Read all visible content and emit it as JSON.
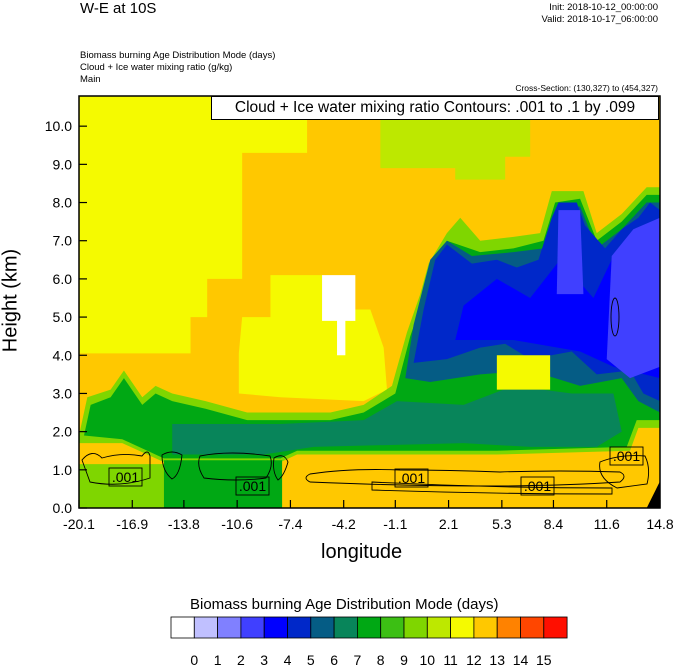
{
  "header": {
    "title": "W-E at 10S",
    "init": "Init: 2018-10-12_00:00:00",
    "valid": "Valid: 2018-10-17_06:00:00",
    "field1": "Biomass burning Age Distribution Mode   (days)",
    "field2": "Cloud + Ice water mixing ratio   (g/kg)",
    "field3": "Main",
    "cross_section": "Cross-Section: (130,327) to (454,327)"
  },
  "chart_data": {
    "type": "heatmap",
    "title": "W-E at 10S",
    "xlabel": "longitude",
    "ylabel": "Height (km)",
    "xlim": [
      -20.1,
      14.8
    ],
    "ylim": [
      0,
      10.79
    ],
    "xticks": [
      "-20.1",
      "-16.9",
      "-13.8",
      "-10.6",
      "-7.4",
      "-4.2",
      "-1.1",
      "2.1",
      "5.3",
      "8.4",
      "11.6",
      "14.8"
    ],
    "xtick_values": [
      -20.1,
      -16.9,
      -13.8,
      -10.6,
      -7.4,
      -4.2,
      -1.1,
      2.1,
      5.3,
      8.4,
      11.6,
      14.8
    ],
    "yticks": [
      "0.0",
      "1.0",
      "2.0",
      "3.0",
      "4.0",
      "5.0",
      "6.0",
      "7.0",
      "8.0",
      "9.0",
      "10.0"
    ],
    "ytick_values": [
      0,
      1,
      2,
      3,
      4,
      5,
      6,
      7,
      8,
      9,
      10
    ],
    "contour_info": "Cloud + Ice water mixing ratio Contours: .001 to .1 by .099",
    "contour_labels": [
      ".001",
      ".001",
      ".001",
      ".001",
      ".001"
    ],
    "colorbar": {
      "title": "Biomass burning Age Distribution Mode  (days)",
      "labels": [
        "0",
        "1",
        "2",
        "3",
        "4",
        "5",
        "6",
        "7",
        "8",
        "9",
        "10",
        "11",
        "12",
        "13",
        "14",
        "15"
      ],
      "colors": [
        "#ffffff",
        "#c0c0ff",
        "#8080ff",
        "#4040ff",
        "#0000ff",
        "#0028c9",
        "#055c85",
        "#08855a",
        "#00a814",
        "#3cbf14",
        "#7fd600",
        "#bde800",
        "#f5fa00",
        "#ffc800",
        "#ff8200",
        "#ff4600",
        "#ff0f00"
      ]
    },
    "regions": [
      {
        "c": 13,
        "pts": [
          [
            -20.1,
            0
          ],
          [
            -20.1,
            10.79
          ],
          [
            14.8,
            10.79
          ],
          [
            14.8,
            0
          ]
        ]
      },
      {
        "c": 12,
        "pts": [
          [
            -20.1,
            10.79
          ],
          [
            -6.4,
            10.79
          ],
          [
            -6.4,
            9.3
          ],
          [
            -10.3,
            9.3
          ],
          [
            -10.3,
            6.0
          ],
          [
            -12.4,
            6.0
          ],
          [
            -12.4,
            5.0
          ],
          [
            -13.4,
            5.0
          ],
          [
            -13.4,
            4.05
          ],
          [
            -20.1,
            4.05
          ]
        ]
      },
      {
        "c": 12,
        "pts": [
          [
            -10.5,
            4.05
          ],
          [
            -10.3,
            5.0
          ],
          [
            -8.6,
            5.0
          ],
          [
            -8.6,
            6.1
          ],
          [
            -5.5,
            6.1
          ],
          [
            -5.5,
            5.2
          ],
          [
            -2.6,
            5.2
          ],
          [
            -1.8,
            4.2
          ],
          [
            -1.6,
            3.1
          ],
          [
            -3,
            2.8
          ],
          [
            -8,
            2.9
          ],
          [
            -10.5,
            3.0
          ]
        ]
      },
      {
        "c": 11,
        "pts": [
          [
            -2,
            10.79
          ],
          [
            7,
            10.79
          ],
          [
            7,
            9.2
          ],
          [
            5.5,
            9.2
          ],
          [
            5.5,
            8.6
          ],
          [
            2.5,
            8.6
          ],
          [
            2.5,
            8.9
          ],
          [
            -2,
            8.9
          ]
        ]
      },
      {
        "c": 10,
        "pts": [
          [
            -20.1,
            1.9
          ],
          [
            -19.6,
            2.9
          ],
          [
            -18.2,
            3.1
          ],
          [
            -17.4,
            3.6
          ],
          [
            -16.3,
            2.9
          ],
          [
            -15.5,
            3.2
          ],
          [
            -14.5,
            3.0
          ],
          [
            -12.5,
            2.8
          ],
          [
            -10,
            2.5
          ],
          [
            -5,
            2.5
          ],
          [
            -3,
            2.7
          ],
          [
            -1.3,
            3.2
          ],
          [
            -0.4,
            4.6
          ],
          [
            0.4,
            5.6
          ],
          [
            0.9,
            6.4
          ],
          [
            2,
            7.2
          ],
          [
            2.8,
            7.6
          ],
          [
            4,
            7.0
          ],
          [
            6,
            7.1
          ],
          [
            7.6,
            7.2
          ],
          [
            8.3,
            8.3
          ],
          [
            10.2,
            8.3
          ],
          [
            11,
            7.2
          ],
          [
            12.5,
            7.7
          ],
          [
            14,
            8.4
          ],
          [
            14.8,
            8.4
          ],
          [
            14.8,
            2.1
          ],
          [
            13.5,
            2.1
          ],
          [
            13,
            1.5
          ],
          [
            5,
            1.4
          ],
          [
            -7,
            1.4
          ],
          [
            -8,
            1.2
          ],
          [
            -15,
            1.2
          ],
          [
            -17.5,
            1.7
          ],
          [
            -20.1,
            1.7
          ]
        ]
      },
      {
        "c": 8,
        "pts": [
          [
            -19.8,
            1.9
          ],
          [
            -19.4,
            2.7
          ],
          [
            -18.2,
            2.9
          ],
          [
            -17.4,
            3.4
          ],
          [
            -16.3,
            2.7
          ],
          [
            -15.5,
            3.0
          ],
          [
            -14.5,
            2.8
          ],
          [
            -12.5,
            2.6
          ],
          [
            -10,
            2.3
          ],
          [
            -5,
            2.3
          ],
          [
            -3,
            2.5
          ],
          [
            -1.1,
            3.0
          ],
          [
            -0.2,
            4.5
          ],
          [
            0.6,
            5.5
          ],
          [
            1.1,
            6.2
          ],
          [
            2,
            7.0
          ],
          [
            4,
            6.7
          ],
          [
            6,
            6.8
          ],
          [
            7.8,
            7.0
          ],
          [
            8.5,
            8.0
          ],
          [
            10,
            8.1
          ],
          [
            11,
            7.0
          ],
          [
            12.5,
            7.5
          ],
          [
            14,
            8.2
          ],
          [
            14.8,
            8.2
          ],
          [
            14.8,
            2.3
          ],
          [
            13.4,
            2.3
          ],
          [
            12.8,
            1.6
          ],
          [
            5,
            1.5
          ],
          [
            -7,
            1.5
          ],
          [
            -8,
            1.3
          ],
          [
            -15,
            1.3
          ],
          [
            -17.5,
            1.8
          ]
        ]
      },
      {
        "c": 7,
        "pts": [
          [
            -14.5,
            1.4
          ],
          [
            -14.5,
            2.2
          ],
          [
            -8,
            2.2
          ],
          [
            -3,
            2.3
          ],
          [
            -1,
            2.8
          ],
          [
            3,
            2.7
          ],
          [
            6,
            3.2
          ],
          [
            9.5,
            3.0
          ],
          [
            12,
            3.0
          ],
          [
            12.5,
            2.0
          ],
          [
            11,
            1.6
          ],
          [
            7,
            1.6
          ],
          [
            3,
            1.7
          ],
          [
            -6,
            1.6
          ],
          [
            -9,
            1.4
          ],
          [
            -13,
            1.4
          ]
        ]
      },
      {
        "c": 6,
        "pts": [
          [
            -0.5,
            3.4
          ],
          [
            0,
            4.8
          ],
          [
            1,
            6.5
          ],
          [
            2,
            7.0
          ],
          [
            3.5,
            6.6
          ],
          [
            6,
            6.7
          ],
          [
            7.8,
            6.8
          ],
          [
            8.5,
            7.8
          ],
          [
            10,
            7.9
          ],
          [
            11,
            6.8
          ],
          [
            12.5,
            7.3
          ],
          [
            14,
            8.0
          ],
          [
            14.8,
            8.0
          ],
          [
            14.8,
            2.5
          ],
          [
            13.5,
            2.8
          ],
          [
            12.5,
            3.4
          ],
          [
            10,
            3.2
          ],
          [
            7,
            3.6
          ],
          [
            4,
            3.5
          ],
          [
            1,
            3.3
          ]
        ]
      },
      {
        "c": 5,
        "pts": [
          [
            0,
            3.8
          ],
          [
            0.6,
            5.2
          ],
          [
            1.3,
            6.5
          ],
          [
            2,
            6.9
          ],
          [
            3.5,
            6.4
          ],
          [
            5,
            6.5
          ],
          [
            6.2,
            6.3
          ],
          [
            7.5,
            6.5
          ],
          [
            8.3,
            7.6
          ],
          [
            8.7,
            8.0
          ],
          [
            9.8,
            8.0
          ],
          [
            10.3,
            7.4
          ],
          [
            11.5,
            6.8
          ],
          [
            12.5,
            7.3
          ],
          [
            13.5,
            7.6
          ],
          [
            14.2,
            8.0
          ],
          [
            14.8,
            7.8
          ],
          [
            14.8,
            2.8
          ],
          [
            13.8,
            3.0
          ],
          [
            13,
            3.6
          ],
          [
            11,
            3.5
          ],
          [
            9.5,
            4.1
          ],
          [
            7,
            3.9
          ],
          [
            5.5,
            4.3
          ],
          [
            4,
            4.2
          ],
          [
            2,
            3.9
          ]
        ]
      },
      {
        "c": 4,
        "pts": [
          [
            2.5,
            4.4
          ],
          [
            3,
            5.3
          ],
          [
            5,
            6.0
          ],
          [
            7,
            5.5
          ],
          [
            8.8,
            6.5
          ],
          [
            10.8,
            5.5
          ],
          [
            12,
            6.6
          ],
          [
            14.8,
            7.4
          ],
          [
            14.8,
            3.4
          ],
          [
            12,
            3.7
          ],
          [
            10,
            4.1
          ],
          [
            6,
            4.4
          ]
        ]
      },
      {
        "c": 3,
        "pts": [
          [
            8.6,
            5.6
          ],
          [
            8.7,
            7.8
          ],
          [
            10,
            7.8
          ],
          [
            10.2,
            5.6
          ]
        ]
      },
      {
        "c": 3,
        "pts": [
          [
            11.6,
            3.9
          ],
          [
            11.9,
            6.6
          ],
          [
            13.2,
            7.3
          ],
          [
            14.8,
            7.6
          ],
          [
            14.8,
            3.7
          ],
          [
            13,
            3.4
          ]
        ]
      },
      {
        "c": 12,
        "pts": [
          [
            5,
            3.1
          ],
          [
            5,
            4.0
          ],
          [
            8.2,
            4.0
          ],
          [
            8.2,
            3.1
          ]
        ]
      },
      {
        "c": 0,
        "pts": [
          [
            -5.5,
            4.9
          ],
          [
            -5.5,
            6.1
          ],
          [
            -3.5,
            6.1
          ],
          [
            -3.5,
            4.9
          ],
          [
            -4.1,
            4.9
          ],
          [
            -4.1,
            4.0
          ],
          [
            -4.6,
            4.0
          ],
          [
            -4.6,
            4.9
          ]
        ]
      },
      {
        "c": 10,
        "pts": [
          [
            -20.1,
            0
          ],
          [
            -20.1,
            1.15
          ],
          [
            -15,
            1.15
          ],
          [
            -15,
            0
          ]
        ]
      },
      {
        "c": 8,
        "pts": [
          [
            -15,
            0
          ],
          [
            -15,
            1.25
          ],
          [
            -7.9,
            1.25
          ],
          [
            -7.9,
            0
          ]
        ]
      }
    ]
  }
}
